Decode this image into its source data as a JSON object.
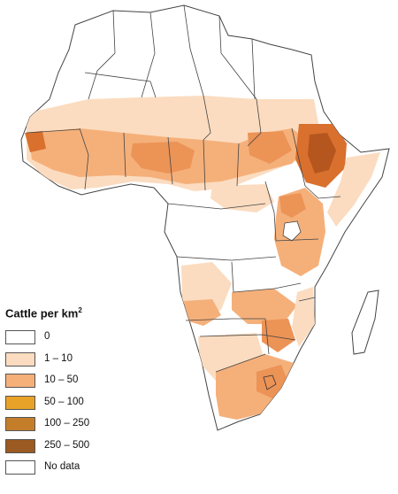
{
  "legend": {
    "title": "Cattle per km",
    "title_sup": "2",
    "items": [
      {
        "label": "0",
        "color": "#ffffff"
      },
      {
        "label": "1 – 10",
        "color": "#fbdcc0"
      },
      {
        "label": "10 – 50",
        "color": "#f5b07a"
      },
      {
        "label": "50 – 100",
        "color": "#e8a227"
      },
      {
        "label": "100 – 250",
        "color": "#c47e2a"
      },
      {
        "label": "250 – 500",
        "color": "#9a5a22"
      },
      {
        "label": "No data",
        "color": "#ffffff"
      }
    ]
  },
  "colors": {
    "land": "#ffffff",
    "border": "#444444",
    "light": "#fbdcc0",
    "medium": "#f5b07a",
    "strong": "#ec9356",
    "dense": "#d9702e",
    "darkest": "#b5561f",
    "water": "#ffffff"
  }
}
